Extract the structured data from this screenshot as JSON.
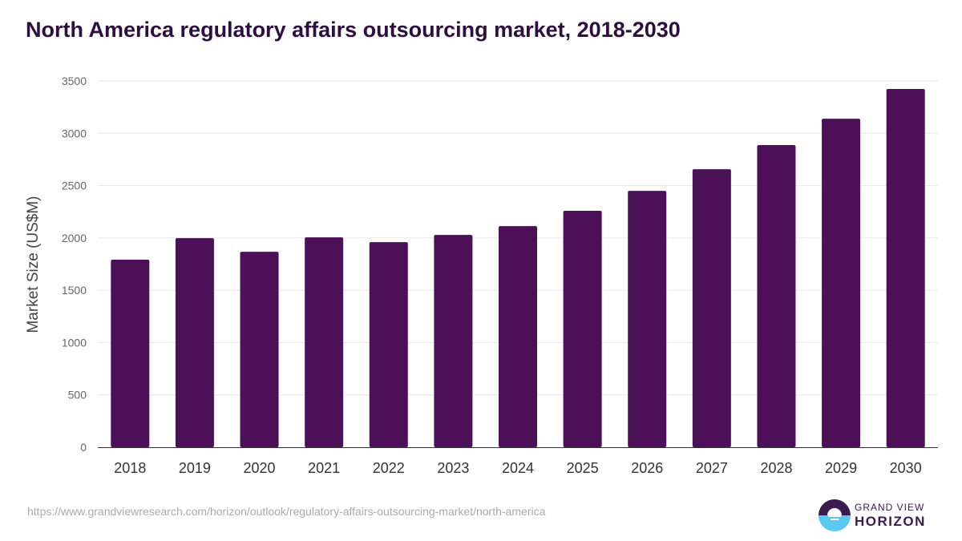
{
  "title": "North America regulatory affairs outsourcing market, 2018-2030",
  "source": "https://www.grandviewresearch.com/horizon/outlook/regulatory-affairs-outsourcing-market/north-america",
  "logo": {
    "line1": "GRAND VIEW",
    "line2": "HORIZON"
  },
  "chart_data": {
    "type": "bar",
    "title": "North America regulatory affairs outsourcing market, 2018-2030",
    "xlabel": "",
    "ylabel": "Market Size (US$M)",
    "categories": [
      "2018",
      "2019",
      "2020",
      "2021",
      "2022",
      "2023",
      "2024",
      "2025",
      "2026",
      "2027",
      "2028",
      "2029",
      "2030"
    ],
    "values": [
      1792,
      1998,
      1868,
      2006,
      1960,
      2029,
      2113,
      2259,
      2450,
      2657,
      2887,
      3139,
      3423
    ],
    "ylim": [
      0,
      3500
    ],
    "yticks": [
      0,
      500,
      1000,
      1500,
      2000,
      2500,
      3000,
      3500
    ],
    "grid": true,
    "bar_color": "#4b1057"
  }
}
